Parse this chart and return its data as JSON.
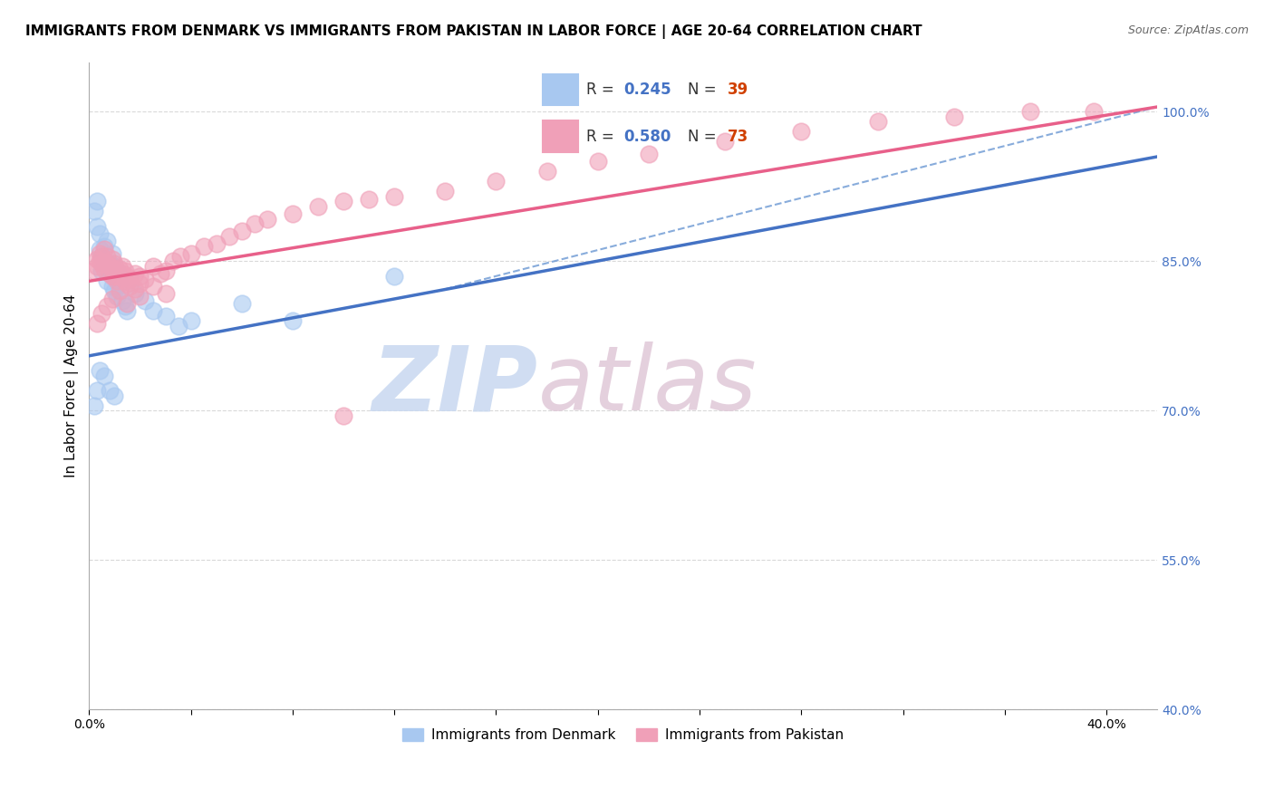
{
  "title": "IMMIGRANTS FROM DENMARK VS IMMIGRANTS FROM PAKISTAN IN LABOR FORCE | AGE 20-64 CORRELATION CHART",
  "source": "Source: ZipAtlas.com",
  "ylabel": "In Labor Force | Age 20-64",
  "xlim": [
    0.0,
    0.42
  ],
  "ylim": [
    0.4,
    1.05
  ],
  "yticks": [
    0.4,
    0.55,
    0.7,
    0.85,
    1.0
  ],
  "ytick_labels": [
    "40.0%",
    "55.0%",
    "70.0%",
    "85.0%",
    "100.0%"
  ],
  "denmark_color": "#a8c8f0",
  "pakistan_color": "#f0a0b8",
  "denmark_R": 0.245,
  "denmark_N": 39,
  "pakistan_R": 0.58,
  "pakistan_N": 73,
  "dk_line_x0": 0.0,
  "dk_line_x1": 0.42,
  "dk_line_y0": 0.755,
  "dk_line_y1": 0.955,
  "pk_line_x0": 0.0,
  "pk_line_x1": 0.42,
  "pk_line_y0": 0.83,
  "pk_line_y1": 1.005,
  "dash_line_x0": 0.14,
  "dash_line_x1": 0.42,
  "dash_line_y0": 0.822,
  "dash_line_y1": 1.005,
  "background_color": "#ffffff",
  "grid_color": "#d0d0d0",
  "title_fontsize": 11,
  "source_fontsize": 9,
  "axis_label_fontsize": 11,
  "tick_fontsize": 10,
  "watermark_zip_color": "#c8d8f0",
  "watermark_atlas_color": "#e0c8d8",
  "dk_scatter_x": [
    0.002,
    0.003,
    0.003,
    0.004,
    0.004,
    0.005,
    0.005,
    0.006,
    0.006,
    0.007,
    0.007,
    0.008,
    0.008,
    0.009,
    0.009,
    0.01,
    0.01,
    0.01,
    0.011,
    0.011,
    0.012,
    0.013,
    0.014,
    0.015,
    0.018,
    0.022,
    0.025,
    0.03,
    0.035,
    0.04,
    0.06,
    0.08,
    0.12,
    0.002,
    0.003,
    0.004,
    0.006,
    0.008,
    0.01
  ],
  "dk_scatter_y": [
    0.9,
    0.91,
    0.885,
    0.878,
    0.862,
    0.855,
    0.84,
    0.85,
    0.865,
    0.87,
    0.83,
    0.848,
    0.838,
    0.858,
    0.825,
    0.845,
    0.835,
    0.82,
    0.84,
    0.815,
    0.828,
    0.81,
    0.805,
    0.8,
    0.818,
    0.81,
    0.8,
    0.795,
    0.785,
    0.79,
    0.808,
    0.79,
    0.835,
    0.705,
    0.72,
    0.74,
    0.735,
    0.72,
    0.715
  ],
  "pk_scatter_x": [
    0.002,
    0.003,
    0.003,
    0.004,
    0.004,
    0.005,
    0.005,
    0.006,
    0.006,
    0.007,
    0.007,
    0.008,
    0.008,
    0.009,
    0.009,
    0.01,
    0.01,
    0.01,
    0.011,
    0.011,
    0.012,
    0.012,
    0.013,
    0.013,
    0.014,
    0.014,
    0.015,
    0.015,
    0.016,
    0.016,
    0.018,
    0.018,
    0.02,
    0.02,
    0.022,
    0.025,
    0.028,
    0.03,
    0.033,
    0.036,
    0.04,
    0.045,
    0.05,
    0.055,
    0.06,
    0.065,
    0.07,
    0.08,
    0.09,
    0.1,
    0.11,
    0.12,
    0.14,
    0.16,
    0.18,
    0.2,
    0.22,
    0.25,
    0.28,
    0.31,
    0.34,
    0.37,
    0.395,
    0.003,
    0.005,
    0.007,
    0.009,
    0.012,
    0.015,
    0.02,
    0.025,
    0.03,
    0.1
  ],
  "pk_scatter_y": [
    0.84,
    0.852,
    0.845,
    0.85,
    0.858,
    0.848,
    0.855,
    0.842,
    0.862,
    0.848,
    0.855,
    0.838,
    0.845,
    0.852,
    0.835,
    0.842,
    0.848,
    0.835,
    0.84,
    0.83,
    0.842,
    0.835,
    0.838,
    0.845,
    0.83,
    0.84,
    0.835,
    0.828,
    0.832,
    0.825,
    0.838,
    0.822,
    0.835,
    0.828,
    0.832,
    0.845,
    0.838,
    0.84,
    0.85,
    0.855,
    0.858,
    0.865,
    0.868,
    0.875,
    0.88,
    0.888,
    0.892,
    0.898,
    0.905,
    0.91,
    0.912,
    0.915,
    0.92,
    0.93,
    0.94,
    0.95,
    0.958,
    0.97,
    0.98,
    0.99,
    0.995,
    1.0,
    1.0,
    0.788,
    0.798,
    0.805,
    0.812,
    0.82,
    0.808,
    0.815,
    0.825,
    0.818,
    0.695
  ]
}
